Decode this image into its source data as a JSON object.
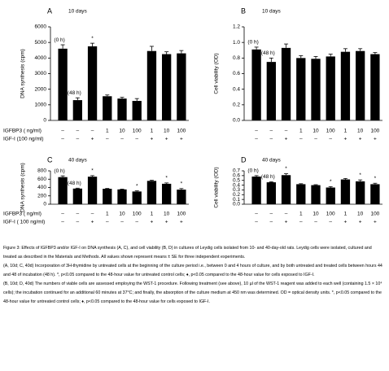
{
  "chart_data": [
    {
      "type": "bar",
      "title": "A",
      "subtitle": "10 days",
      "y_label": "DNA synthesis (cpm)",
      "color": "#000000",
      "values": [
        4600,
        1300,
        4750,
        1550,
        1400,
        1250,
        4450,
        4250,
        4300
      ],
      "errors": [
        250,
        150,
        200,
        80,
        80,
        150,
        300,
        150,
        180
      ],
      "bar_notes": [
        "(0 h)",
        "(48 h)",
        "*",
        null,
        null,
        null,
        null,
        null,
        null
      ],
      "ylim": [
        0,
        6000
      ],
      "yticks": [
        0,
        1000,
        2000,
        3000,
        4000,
        5000,
        6000
      ],
      "treatment_rows": [
        {
          "label": "IGFBP3 ( ng/ml)",
          "values": [
            "–",
            "–",
            "–",
            "1",
            "10",
            "100",
            "1",
            "10",
            "100"
          ]
        },
        {
          "label": "IGF-I (100 ng/ml)",
          "values": [
            "–",
            "–",
            "+",
            "–",
            "–",
            "–",
            "+",
            "+",
            "+"
          ]
        }
      ]
    },
    {
      "type": "bar",
      "title": "B",
      "subtitle": "10 days",
      "y_label": "Cell viability (OD)",
      "color": "#000000",
      "values": [
        0.91,
        0.75,
        0.93,
        0.8,
        0.79,
        0.82,
        0.88,
        0.89,
        0.85
      ],
      "errors": [
        0.03,
        0.05,
        0.05,
        0.03,
        0.03,
        0.03,
        0.04,
        0.03,
        0.02
      ],
      "bar_notes": [
        "(0 h)",
        "(48 h)",
        null,
        null,
        null,
        null,
        null,
        null,
        null
      ],
      "ylim": [
        0,
        1.2
      ],
      "yticks": [
        {
          "value": 0,
          "label": "0.0"
        },
        0.2,
        0.4,
        0.6,
        0.8,
        {
          "value": 1,
          "label": "1.0"
        },
        1.2
      ],
      "treatment_rows": [
        {
          "values": [
            "–",
            "–",
            "–",
            "1",
            "10",
            "100",
            "1",
            "10",
            "100"
          ]
        },
        {
          "values": [
            "–",
            "–",
            "+",
            "–",
            "–",
            "–",
            "+",
            "+",
            "+"
          ]
        }
      ]
    },
    {
      "type": "bar",
      "title": "C",
      "subtitle": "40 days",
      "y_label": "DNA synthesis (cpm)",
      "color": "#000000",
      "values": [
        650,
        375,
        660,
        370,
        355,
        305,
        560,
        490,
        350
      ],
      "errors": [
        30,
        10,
        25,
        8,
        8,
        15,
        15,
        20,
        25
      ],
      "bar_notes": [
        "(0 h)",
        "(48 h)",
        "*",
        null,
        null,
        "*",
        null,
        "*",
        "*"
      ],
      "ylim": [
        0,
        800
      ],
      "yticks": [
        0,
        200,
        400,
        600,
        800
      ],
      "treatment_rows": [
        {
          "label": "IGFBP3 ( ng/ml)",
          "values": [
            "–",
            "–",
            "–",
            "1",
            "10",
            "100",
            "1",
            "10",
            "100"
          ]
        },
        {
          "label": "IGF-I ( 100 ng/ml)",
          "values": [
            "–",
            "–",
            "+",
            "–",
            "–",
            "–",
            "+",
            "+",
            "+"
          ]
        }
      ]
    },
    {
      "type": "bar",
      "title": "D",
      "subtitle": "40 days",
      "y_label": "Cell viability (OD)",
      "color": "#000000",
      "values": [
        0.58,
        0.46,
        0.61,
        0.42,
        0.4,
        0.35,
        0.52,
        0.48,
        0.42
      ],
      "errors": [
        0.02,
        0.01,
        0.03,
        0.01,
        0.01,
        0.02,
        0.02,
        0.03,
        0.02
      ],
      "bar_notes": [
        "(0 h)",
        "(48 h)",
        "*",
        null,
        null,
        "*",
        null,
        "*",
        "*"
      ],
      "ylim": [
        0,
        0.7
      ],
      "yticks": [
        {
          "value": 0,
          "label": "0.0"
        },
        0.1,
        0.2,
        0.3,
        0.4,
        0.5,
        0.6,
        0.7
      ],
      "treatment_rows": [
        {
          "values": [
            "–",
            "–",
            "–",
            "1",
            "10",
            "100",
            "1",
            "10",
            "100"
          ]
        },
        {
          "values": [
            "–",
            "–",
            "+",
            "–",
            "–",
            "–",
            "+",
            "+",
            "+"
          ]
        }
      ]
    }
  ],
  "caption": [
    "Figure 3: Effects of IGFBP3 and/or IGF-I on DNA synthesis (A, C), and cell viability (B, D) in cultures of Leydig cells isolated from 10- and 40-day-old rats. Leydig cells were isolated, cultured and treated as described in the Materials and Methods. All values shown represent means ± SE for three independent experiments.",
    "(A, 10d; C, 40d) Incorporation of 3H-thymidine by untreated cells at the beginning of the culture period i.e., between 0 and 4 hours of culture, and by both untreated and treated cells between hours 44 and 48 of incubation (48 h). *, p<0.05 compared to the 48-hour value for untreated control cells; ♦, p<0.05 compared to the 48-hour value for cells exposed to IGF-I.",
    "(B, 10d; D, 40d) The numbers of viable cells are assessed employing the WST-1 procedure. Following treatment (see above), 10 µl of the WST-1 reagent was added to each well (containing 1.5 × 10⁴ cells); the incubation continued for an additional 60 minutes at 37°C; and finally, the absorption of the culture medium at 450 nm was determined. OD = optical density units. *, p<0.05 compared to the 48-hour value for untreated control cells; ♦, p<0.05 compared to the 48-hour value for cells exposed to IGF-I."
  ]
}
